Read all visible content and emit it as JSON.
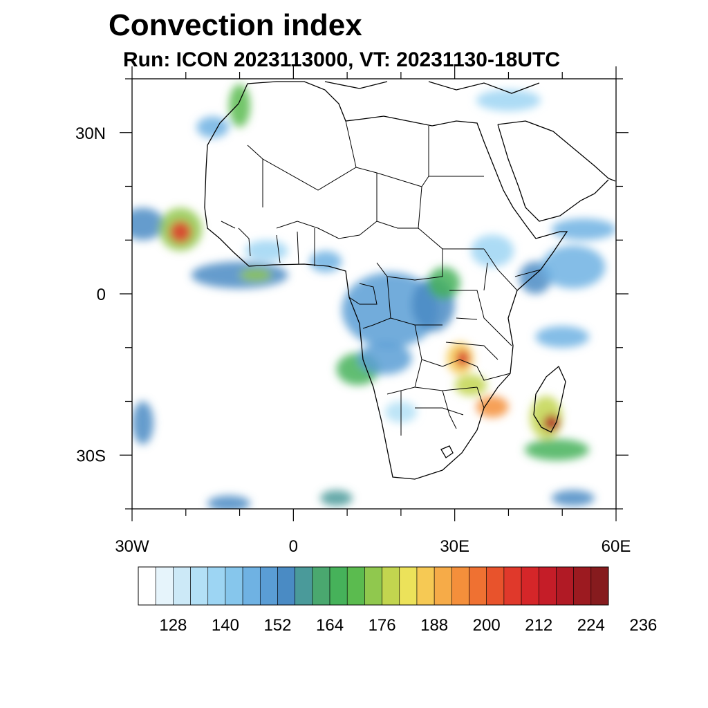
{
  "title": "Convection index",
  "subtitle": "Run: ICON 2023113000,  VT: 20231130-18UTC",
  "axes": {
    "y_ticks": [
      {
        "label": "30N",
        "lat": 30
      },
      {
        "label": "0",
        "lat": 0
      },
      {
        "label": "30S",
        "lat": -30
      }
    ],
    "x_ticks": [
      {
        "label": "30W",
        "lon": -30
      },
      {
        "label": "0",
        "lon": 0
      },
      {
        "label": "30E",
        "lon": 30
      },
      {
        "label": "60E",
        "lon": 60
      }
    ],
    "lon_range": [
      -30,
      60
    ],
    "lat_range": [
      -40,
      40
    ]
  },
  "colorbar": {
    "labels": [
      "128",
      "140",
      "152",
      "164",
      "176",
      "188",
      "200",
      "212",
      "224",
      "236"
    ],
    "colors": [
      "#ffffff",
      "#e6f4fb",
      "#cce9f7",
      "#b3e0f6",
      "#9dd5f3",
      "#86c6ec",
      "#6fb2e3",
      "#5a9dd5",
      "#4a8bc4",
      "#4a9a9a",
      "#4aa86f",
      "#46b25a",
      "#5bbb4f",
      "#90c84e",
      "#c2d54f",
      "#ece25a",
      "#f6c954",
      "#f6ab48",
      "#f48f3b",
      "#ef7132",
      "#e8532c",
      "#e0392b",
      "#d52629",
      "#c51d28",
      "#b11a25",
      "#9c1a20",
      "#861b1e"
    ]
  },
  "chart_data": {
    "type": "heatmap",
    "title": "Convection index",
    "subtitle": "Run: ICON 2023113000,  VT: 20231130-18UTC",
    "model": "ICON",
    "run": "2023113000",
    "valid_time": "20231130-18UTC",
    "xlabel": "",
    "ylabel": "",
    "xlim": [
      -30,
      60
    ],
    "ylim": [
      -40,
      40
    ],
    "colorbar_ticks": [
      128,
      140,
      152,
      164,
      176,
      188,
      200,
      212,
      224,
      236
    ],
    "cells": [
      {
        "lon": -28,
        "lat": 13,
        "rx": 4,
        "ry": 3,
        "value": 150
      },
      {
        "lon": -21,
        "lat": 12,
        "rx": 4,
        "ry": 4,
        "value": 170
      },
      {
        "lon": -21,
        "lat": 11.5,
        "rx": 2,
        "ry": 2,
        "value": 200
      },
      {
        "lon": -10,
        "lat": 3.5,
        "rx": 9,
        "ry": 2.5,
        "value": 150
      },
      {
        "lon": -7,
        "lat": 3.5,
        "rx": 3,
        "ry": 1.2,
        "value": 170
      },
      {
        "lon": -5,
        "lat": 8,
        "rx": 4,
        "ry": 2,
        "value": 135
      },
      {
        "lon": -10,
        "lat": 35,
        "rx": 2,
        "ry": 4,
        "value": 165
      },
      {
        "lon": -15,
        "lat": 31,
        "rx": 3,
        "ry": 2,
        "value": 140
      },
      {
        "lon": 40,
        "lat": 36,
        "rx": 6,
        "ry": 2,
        "value": 135
      },
      {
        "lon": 6,
        "lat": 6,
        "rx": 3,
        "ry": 2,
        "value": 140
      },
      {
        "lon": 18,
        "lat": -3,
        "rx": 9,
        "ry": 7,
        "value": 145
      },
      {
        "lon": 26,
        "lat": -2,
        "rx": 4,
        "ry": 5,
        "value": 150
      },
      {
        "lon": 28,
        "lat": 2,
        "rx": 3,
        "ry": 3,
        "value": 160
      },
      {
        "lon": 31,
        "lat": -12,
        "rx": 2.5,
        "ry": 3,
        "value": 180
      },
      {
        "lon": 31.5,
        "lat": -12,
        "rx": 1.2,
        "ry": 1.5,
        "value": 205
      },
      {
        "lon": 33,
        "lat": -17,
        "rx": 3,
        "ry": 2,
        "value": 175
      },
      {
        "lon": 37,
        "lat": -21,
        "rx": 3,
        "ry": 2,
        "value": 190
      },
      {
        "lon": 12,
        "lat": -14,
        "rx": 4,
        "ry": 3,
        "value": 160
      },
      {
        "lon": 17,
        "lat": -12,
        "rx": 5,
        "ry": 3,
        "value": 145
      },
      {
        "lon": 47,
        "lat": -23,
        "rx": 3,
        "ry": 4,
        "value": 175
      },
      {
        "lon": 48,
        "lat": -24,
        "rx": 1.5,
        "ry": 1.5,
        "value": 215
      },
      {
        "lon": 49,
        "lat": -29,
        "rx": 6,
        "ry": 2,
        "value": 160
      },
      {
        "lon": 45,
        "lat": 3,
        "rx": 3,
        "ry": 3,
        "value": 150
      },
      {
        "lon": 52,
        "lat": 5,
        "rx": 6,
        "ry": 4,
        "value": 140
      },
      {
        "lon": 50,
        "lat": -8,
        "rx": 5,
        "ry": 2,
        "value": 140
      },
      {
        "lon": 37,
        "lat": 8,
        "rx": 4,
        "ry": 3,
        "value": 135
      },
      {
        "lon": 20,
        "lat": -22,
        "rx": 3,
        "ry": 2,
        "value": 130
      },
      {
        "lon": -28,
        "lat": -24,
        "rx": 2,
        "ry": 4,
        "value": 150
      },
      {
        "lon": -12,
        "lat": -39,
        "rx": 4,
        "ry": 1.5,
        "value": 150
      },
      {
        "lon": 8,
        "lat": -38,
        "rx": 3,
        "ry": 1.5,
        "value": 155
      },
      {
        "lon": 52,
        "lat": -38,
        "rx": 4,
        "ry": 1.5,
        "value": 150
      },
      {
        "lon": 54,
        "lat": 12,
        "rx": 6,
        "ry": 2,
        "value": 140
      }
    ]
  }
}
